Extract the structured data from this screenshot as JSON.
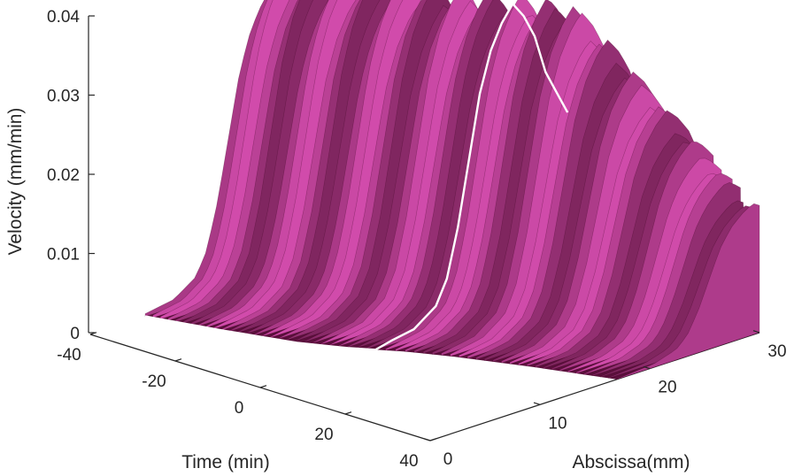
{
  "chart_data": {
    "type": "surface3d",
    "title": "",
    "xlabel": "Time (min)",
    "ylabel": "Abscissa(mm)",
    "zlabel": "Velocity (mm/min)",
    "xlim": [
      -40,
      40
    ],
    "ylim": [
      0,
      30
    ],
    "zlim": [
      0,
      0.04
    ],
    "x_ticks": [
      "-40",
      "-20",
      "0",
      "20",
      "40"
    ],
    "x_tick_values": [
      -40,
      -20,
      0,
      20,
      40
    ],
    "y_ticks": [
      "0",
      "10",
      "20",
      "30"
    ],
    "y_tick_values": [
      0,
      10,
      20,
      30
    ],
    "z_ticks": [
      "0",
      "0.01",
      "0.02",
      "0.03",
      "0.04"
    ],
    "z_tick_values": [
      0,
      0.01,
      0.02,
      0.03,
      0.04
    ],
    "grid": false,
    "colormap": [
      "#4a0a30",
      "#7a1f57",
      "#c24d9a",
      "#f08fd6",
      "#ffc2ef"
    ],
    "highlight_line_color": "#ffffff",
    "surface": {
      "time_min": -40,
      "time_max": 40,
      "abscissa_min": 0,
      "abscissa_max": 30,
      "front_edge_time": [
        -40,
        -25,
        -12,
        -4,
        0,
        4,
        12,
        25,
        40
      ],
      "front_edge_abscissa": [
        5.0,
        6.5,
        8.0,
        9.5,
        10.5,
        11.5,
        13.0,
        15.0,
        17.0
      ],
      "back_edge_abscissa": 30,
      "profile_abscissa": [
        0,
        2,
        4,
        6,
        8,
        10,
        12,
        14,
        16,
        17,
        18,
        19,
        20,
        21,
        22,
        23,
        24,
        25,
        26,
        27,
        28,
        29,
        30
      ],
      "profile_velocity_t0": [
        0,
        0,
        0,
        0,
        0,
        0,
        0.0005,
        0.001,
        0.003,
        0.006,
        0.012,
        0.02,
        0.028,
        0.033,
        0.036,
        0.038,
        0.036,
        0.033,
        0.028,
        0.025,
        0.022,
        0.019,
        0.016
      ],
      "late_time_velocity": 0.015
    },
    "highlight_line": {
      "time": 0,
      "abscissa": [
        0,
        2,
        4,
        6,
        8,
        10,
        12,
        14,
        16,
        17,
        18,
        19,
        20,
        21,
        22,
        23,
        24,
        25,
        26,
        27,
        28
      ],
      "velocity": [
        0,
        0,
        0,
        0,
        0,
        0,
        0.0005,
        0.001,
        0.003,
        0.006,
        0.012,
        0.02,
        0.028,
        0.033,
        0.036,
        0.038,
        0.036,
        0.033,
        0.028,
        0.025,
        0.022
      ]
    }
  }
}
